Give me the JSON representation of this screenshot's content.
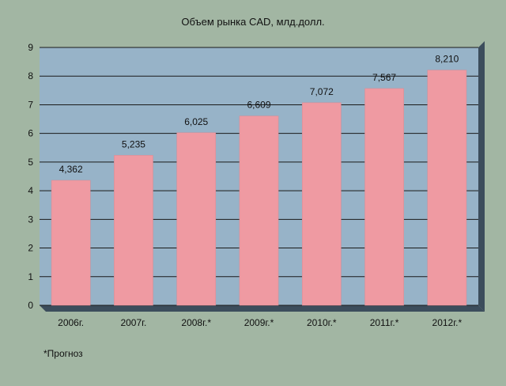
{
  "chart_data": {
    "type": "bar",
    "title": "Объем рынка CAD, млд.долл.",
    "categories": [
      "2006г.",
      "2007г.",
      "2008г.*",
      "2009г.*",
      "2010г.*",
      "2011г.*",
      "2012г.*"
    ],
    "values": [
      4.362,
      5.235,
      6.025,
      6.609,
      7.072,
      7.567,
      8.21
    ],
    "value_labels": [
      "4,362",
      "5,235",
      "6,025",
      "6,609",
      "7,072",
      "7,567",
      "8,210"
    ],
    "ylim": [
      0,
      9
    ],
    "yticks": [
      0,
      1,
      2,
      3,
      4,
      5,
      6,
      7,
      8,
      9
    ],
    "grid": true,
    "xlabel": "",
    "ylabel": "",
    "footnote": "*Прогноз",
    "colors": {
      "page_background": "#a2b6a3",
      "plot_background": "#97b3c8",
      "bar": "#ef9aa2",
      "bar_edge": "#d88a93",
      "gridline": "#1a1a1a",
      "depth_shadow": "#3c4d5c"
    }
  }
}
